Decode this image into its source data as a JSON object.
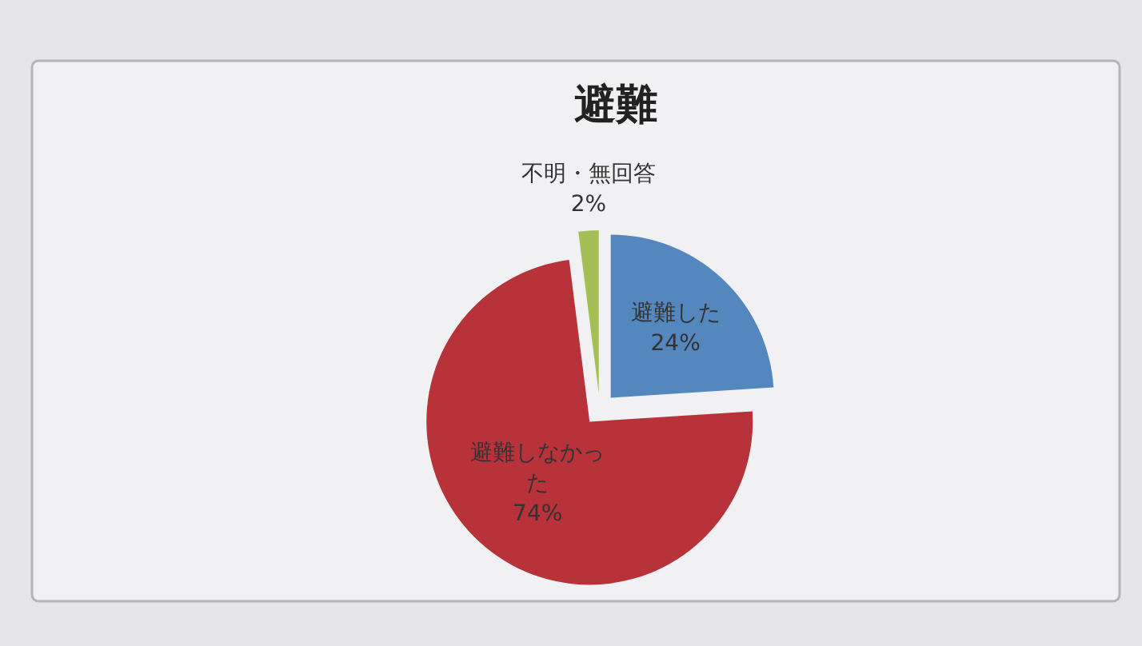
{
  "chart_data": {
    "type": "pie",
    "title": "避難",
    "categories": [
      "避難した",
      "避難しなかった",
      "不明・無回答"
    ],
    "values": [
      24,
      74,
      2
    ],
    "colors": [
      "#5487bd",
      "#b8323a",
      "#a3bf55"
    ],
    "value_labels": [
      "24%",
      "74%",
      "2%"
    ]
  }
}
